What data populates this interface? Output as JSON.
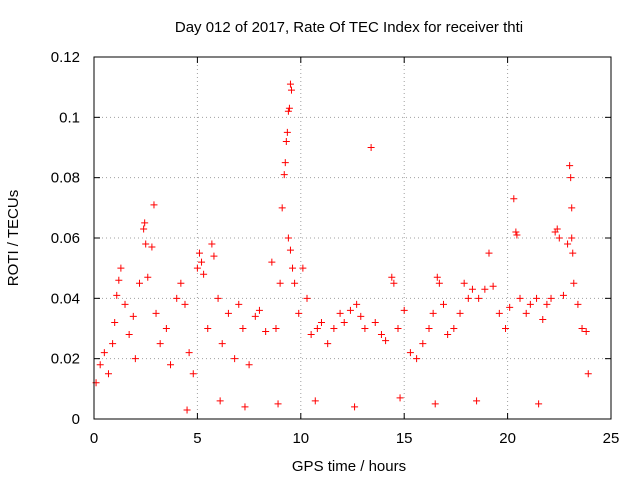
{
  "chart_data": {
    "type": "scatter",
    "title": "Day 012 of 2017, Rate Of TEC Index for receiver thti",
    "xlabel": "GPS time / hours",
    "ylabel": "ROTI / TECUs",
    "xlim": [
      0,
      25
    ],
    "ylim": [
      0,
      0.12
    ],
    "xticks": [
      0,
      5,
      10,
      15,
      20,
      25
    ],
    "xtick_labels": [
      "0",
      "5",
      "10",
      "15",
      "20",
      "25"
    ],
    "yticks": [
      0,
      0.02,
      0.04,
      0.06,
      0.08,
      0.1,
      0.12
    ],
    "ytick_labels": [
      "0",
      "0.02",
      "0.04",
      "0.06",
      "0.08",
      "0.1",
      "0.12"
    ],
    "grid": true,
    "marker": "plus",
    "color": "#ff0000",
    "series": [
      {
        "name": "ROTI",
        "points": [
          [
            0.1,
            0.012
          ],
          [
            0.3,
            0.018
          ],
          [
            0.5,
            0.022
          ],
          [
            0.7,
            0.015
          ],
          [
            0.9,
            0.025
          ],
          [
            1.0,
            0.032
          ],
          [
            1.1,
            0.041
          ],
          [
            1.2,
            0.046
          ],
          [
            1.3,
            0.05
          ],
          [
            1.5,
            0.038
          ],
          [
            1.7,
            0.028
          ],
          [
            1.9,
            0.034
          ],
          [
            2.0,
            0.02
          ],
          [
            2.2,
            0.045
          ],
          [
            2.4,
            0.063
          ],
          [
            2.45,
            0.065
          ],
          [
            2.5,
            0.058
          ],
          [
            2.6,
            0.047
          ],
          [
            2.8,
            0.057
          ],
          [
            2.9,
            0.071
          ],
          [
            3.0,
            0.035
          ],
          [
            3.2,
            0.025
          ],
          [
            3.5,
            0.03
          ],
          [
            3.7,
            0.018
          ],
          [
            4.0,
            0.04
          ],
          [
            4.2,
            0.045
          ],
          [
            4.4,
            0.038
          ],
          [
            4.6,
            0.022
          ],
          [
            4.8,
            0.015
          ],
          [
            5.0,
            0.05
          ],
          [
            5.1,
            0.055
          ],
          [
            5.2,
            0.052
          ],
          [
            5.3,
            0.048
          ],
          [
            5.5,
            0.03
          ],
          [
            5.7,
            0.058
          ],
          [
            5.8,
            0.054
          ],
          [
            6.0,
            0.04
          ],
          [
            6.2,
            0.025
          ],
          [
            6.5,
            0.035
          ],
          [
            6.8,
            0.02
          ],
          [
            7.0,
            0.038
          ],
          [
            7.2,
            0.03
          ],
          [
            7.5,
            0.018
          ],
          [
            7.8,
            0.034
          ],
          [
            8.0,
            0.036
          ],
          [
            8.3,
            0.029
          ],
          [
            8.6,
            0.052
          ],
          [
            8.8,
            0.03
          ],
          [
            9.0,
            0.045
          ],
          [
            9.1,
            0.07
          ],
          [
            9.2,
            0.081
          ],
          [
            9.25,
            0.085
          ],
          [
            9.3,
            0.092
          ],
          [
            9.35,
            0.095
          ],
          [
            9.4,
            0.102
          ],
          [
            9.45,
            0.103
          ],
          [
            9.5,
            0.111
          ],
          [
            9.55,
            0.109
          ],
          [
            9.4,
            0.06
          ],
          [
            9.5,
            0.056
          ],
          [
            9.6,
            0.05
          ],
          [
            9.7,
            0.045
          ],
          [
            9.9,
            0.035
          ],
          [
            10.1,
            0.05
          ],
          [
            10.3,
            0.04
          ],
          [
            10.5,
            0.028
          ],
          [
            10.8,
            0.03
          ],
          [
            11.0,
            0.032
          ],
          [
            11.3,
            0.025
          ],
          [
            11.6,
            0.03
          ],
          [
            11.9,
            0.035
          ],
          [
            12.1,
            0.032
          ],
          [
            12.4,
            0.036
          ],
          [
            12.7,
            0.038
          ],
          [
            12.9,
            0.034
          ],
          [
            13.1,
            0.03
          ],
          [
            13.4,
            0.09
          ],
          [
            13.6,
            0.032
          ],
          [
            13.9,
            0.028
          ],
          [
            14.1,
            0.026
          ],
          [
            14.4,
            0.047
          ],
          [
            14.5,
            0.045
          ],
          [
            14.7,
            0.03
          ],
          [
            15.0,
            0.036
          ],
          [
            15.3,
            0.022
          ],
          [
            15.6,
            0.02
          ],
          [
            15.9,
            0.025
          ],
          [
            16.2,
            0.03
          ],
          [
            16.4,
            0.035
          ],
          [
            16.6,
            0.047
          ],
          [
            16.7,
            0.045
          ],
          [
            16.9,
            0.038
          ],
          [
            17.1,
            0.028
          ],
          [
            17.4,
            0.03
          ],
          [
            17.7,
            0.035
          ],
          [
            17.9,
            0.045
          ],
          [
            18.1,
            0.04
          ],
          [
            18.3,
            0.043
          ],
          [
            18.6,
            0.04
          ],
          [
            18.9,
            0.043
          ],
          [
            19.1,
            0.055
          ],
          [
            19.3,
            0.044
          ],
          [
            19.6,
            0.035
          ],
          [
            19.9,
            0.03
          ],
          [
            20.1,
            0.037
          ],
          [
            20.3,
            0.073
          ],
          [
            20.4,
            0.062
          ],
          [
            20.45,
            0.061
          ],
          [
            20.6,
            0.04
          ],
          [
            20.9,
            0.035
          ],
          [
            21.1,
            0.038
          ],
          [
            21.4,
            0.04
          ],
          [
            21.7,
            0.033
          ],
          [
            21.9,
            0.038
          ],
          [
            22.1,
            0.04
          ],
          [
            22.3,
            0.062
          ],
          [
            22.4,
            0.063
          ],
          [
            22.5,
            0.06
          ],
          [
            22.7,
            0.041
          ],
          [
            22.9,
            0.058
          ],
          [
            23.0,
            0.084
          ],
          [
            23.05,
            0.08
          ],
          [
            23.1,
            0.07
          ],
          [
            23.1,
            0.06
          ],
          [
            23.15,
            0.055
          ],
          [
            23.2,
            0.045
          ],
          [
            23.4,
            0.038
          ],
          [
            23.6,
            0.03
          ],
          [
            23.8,
            0.029
          ],
          [
            23.9,
            0.015
          ],
          [
            4.5,
            0.003
          ],
          [
            6.1,
            0.006
          ],
          [
            7.3,
            0.004
          ],
          [
            8.9,
            0.005
          ],
          [
            10.7,
            0.006
          ],
          [
            12.6,
            0.004
          ],
          [
            14.8,
            0.007
          ],
          [
            16.5,
            0.005
          ],
          [
            18.5,
            0.006
          ],
          [
            21.5,
            0.005
          ]
        ]
      }
    ]
  }
}
